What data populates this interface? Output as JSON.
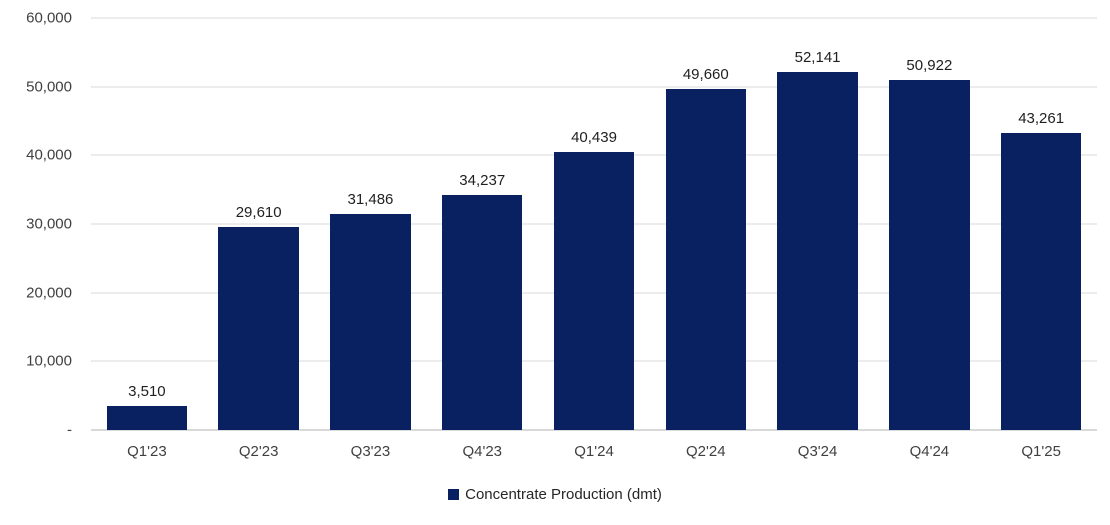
{
  "chart_data": {
    "type": "bar",
    "title": "",
    "xlabel": "",
    "ylabel": "",
    "categories": [
      "Q1'23",
      "Q2'23",
      "Q3'23",
      "Q4'23",
      "Q1'24",
      "Q2'24",
      "Q3'24",
      "Q4'24",
      "Q1'25"
    ],
    "series": [
      {
        "name": "Concentrate Production (dmt)",
        "values": [
          3510,
          29610,
          31486,
          34237,
          40439,
          49660,
          52141,
          50922,
          43261
        ]
      }
    ],
    "data_labels": [
      "3,510",
      "29,610",
      "31,486",
      "34,237",
      "40,439",
      "49,660",
      "52,141",
      "50,922",
      "43,261"
    ],
    "ylim": [
      0,
      60000
    ],
    "ytick_interval": 10000,
    "ytick_labels": [
      "60,000",
      "50,000",
      "40,000",
      "30,000",
      "20,000",
      "10,000",
      "-"
    ],
    "grid": true,
    "legend_position": "bottom",
    "bar_color": "#0A2161",
    "gridline_color": "#D9D9D9"
  },
  "legend": {
    "label": "Concentrate Production (dmt)"
  }
}
